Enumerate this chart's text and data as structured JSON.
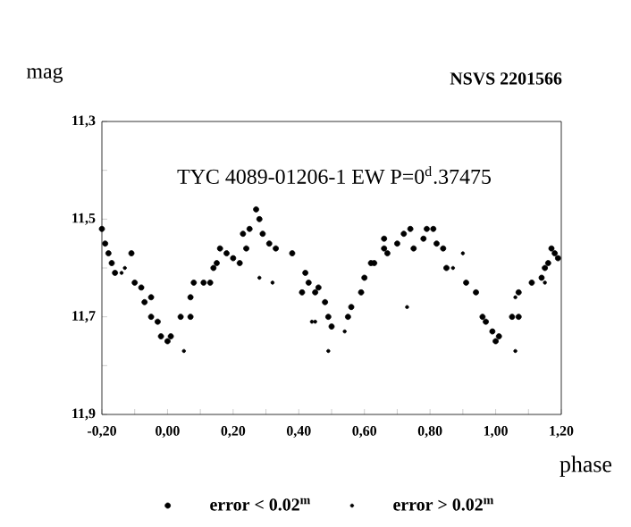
{
  "chart_data": {
    "type": "scatter",
    "title": "NSVS 2201566",
    "subtitle": "TYC 4089-01206-1   EW   P=0$^{d}$.37475",
    "xlabel": "phase",
    "ylabel": "mag",
    "xlim": [
      -0.2,
      1.2
    ],
    "ylim": [
      11.9,
      11.3
    ],
    "xticks": [
      {
        "value": -0.2,
        "label": "-0,20"
      },
      {
        "value": -0.1,
        "label": null
      },
      {
        "value": 0.0,
        "label": "0,00"
      },
      {
        "value": 0.1,
        "label": null
      },
      {
        "value": 0.2,
        "label": "0,20"
      },
      {
        "value": 0.3,
        "label": null
      },
      {
        "value": 0.4,
        "label": "0,40"
      },
      {
        "value": 0.5,
        "label": null
      },
      {
        "value": 0.6,
        "label": "0,60"
      },
      {
        "value": 0.7,
        "label": null
      },
      {
        "value": 0.8,
        "label": "0,80"
      },
      {
        "value": 0.9,
        "label": null
      },
      {
        "value": 1.0,
        "label": "1,00"
      },
      {
        "value": 1.1,
        "label": null
      },
      {
        "value": 1.2,
        "label": "1,20"
      }
    ],
    "yticks": [
      {
        "value": 11.3,
        "label": "11,3"
      },
      {
        "value": 11.4,
        "label": null
      },
      {
        "value": 11.5,
        "label": "11,5"
      },
      {
        "value": 11.6,
        "label": null
      },
      {
        "value": 11.7,
        "label": "11,7"
      },
      {
        "value": 11.8,
        "label": null
      },
      {
        "value": 11.9,
        "label": "11,9"
      }
    ],
    "marker": "circle",
    "grid": false,
    "legend": "bottom",
    "series": [
      {
        "name": "error  < 0.02$^{m}$",
        "color": "#000000",
        "x": [
          -0.2,
          -0.19,
          -0.18,
          -0.17,
          -0.16,
          -0.11,
          -0.1,
          -0.08,
          -0.07,
          -0.05,
          -0.05,
          -0.03,
          -0.02,
          0.0,
          0.01,
          0.04,
          0.07,
          0.07,
          0.08,
          0.11,
          0.13,
          0.14,
          0.15,
          0.16,
          0.18,
          0.2,
          0.22,
          0.23,
          0.24,
          0.25,
          0.27,
          0.28,
          0.29,
          0.31,
          0.33,
          0.38,
          0.41,
          0.42,
          0.43,
          0.45,
          0.46,
          0.48,
          0.49,
          0.5,
          0.55,
          0.56,
          0.59,
          0.6,
          0.62,
          0.63,
          0.66,
          0.66,
          0.67,
          0.7,
          0.72,
          0.74,
          0.75,
          0.78,
          0.79,
          0.81,
          0.82,
          0.84,
          0.85,
          0.91,
          0.94,
          0.96,
          0.97,
          0.99,
          1.0,
          1.01,
          1.05,
          1.07,
          1.07,
          1.11,
          1.14,
          1.15,
          1.16,
          1.17,
          1.18,
          1.19
        ],
        "values": [
          11.52,
          11.55,
          11.57,
          11.59,
          11.61,
          11.57,
          11.63,
          11.64,
          11.67,
          11.66,
          11.7,
          11.71,
          11.74,
          11.75,
          11.74,
          11.7,
          11.7,
          11.66,
          11.63,
          11.63,
          11.63,
          11.6,
          11.59,
          11.56,
          11.57,
          11.58,
          11.59,
          11.53,
          11.56,
          11.52,
          11.48,
          11.5,
          11.53,
          11.55,
          11.56,
          11.57,
          11.65,
          11.61,
          11.63,
          11.65,
          11.64,
          11.67,
          11.7,
          11.72,
          11.7,
          11.68,
          11.65,
          11.62,
          11.59,
          11.59,
          11.56,
          11.54,
          11.57,
          11.55,
          11.53,
          11.52,
          11.56,
          11.54,
          11.52,
          11.52,
          11.55,
          11.56,
          11.6,
          11.63,
          11.65,
          11.7,
          11.71,
          11.73,
          11.75,
          11.74,
          11.7,
          11.7,
          11.65,
          11.63,
          11.62,
          11.6,
          11.59,
          11.56,
          11.57,
          11.58
        ]
      },
      {
        "name": "error  > 0.02$^{m}$",
        "color": "#000000",
        "x": [
          -0.14,
          -0.13,
          0.05,
          0.28,
          0.32,
          0.44,
          0.45,
          0.49,
          0.54,
          0.73,
          0.87,
          0.9,
          1.06,
          1.06,
          1.15
        ],
        "values": [
          11.61,
          11.6,
          11.77,
          11.62,
          11.63,
          11.71,
          11.71,
          11.77,
          11.73,
          11.68,
          11.6,
          11.57,
          11.77,
          11.66,
          11.63
        ]
      }
    ]
  }
}
